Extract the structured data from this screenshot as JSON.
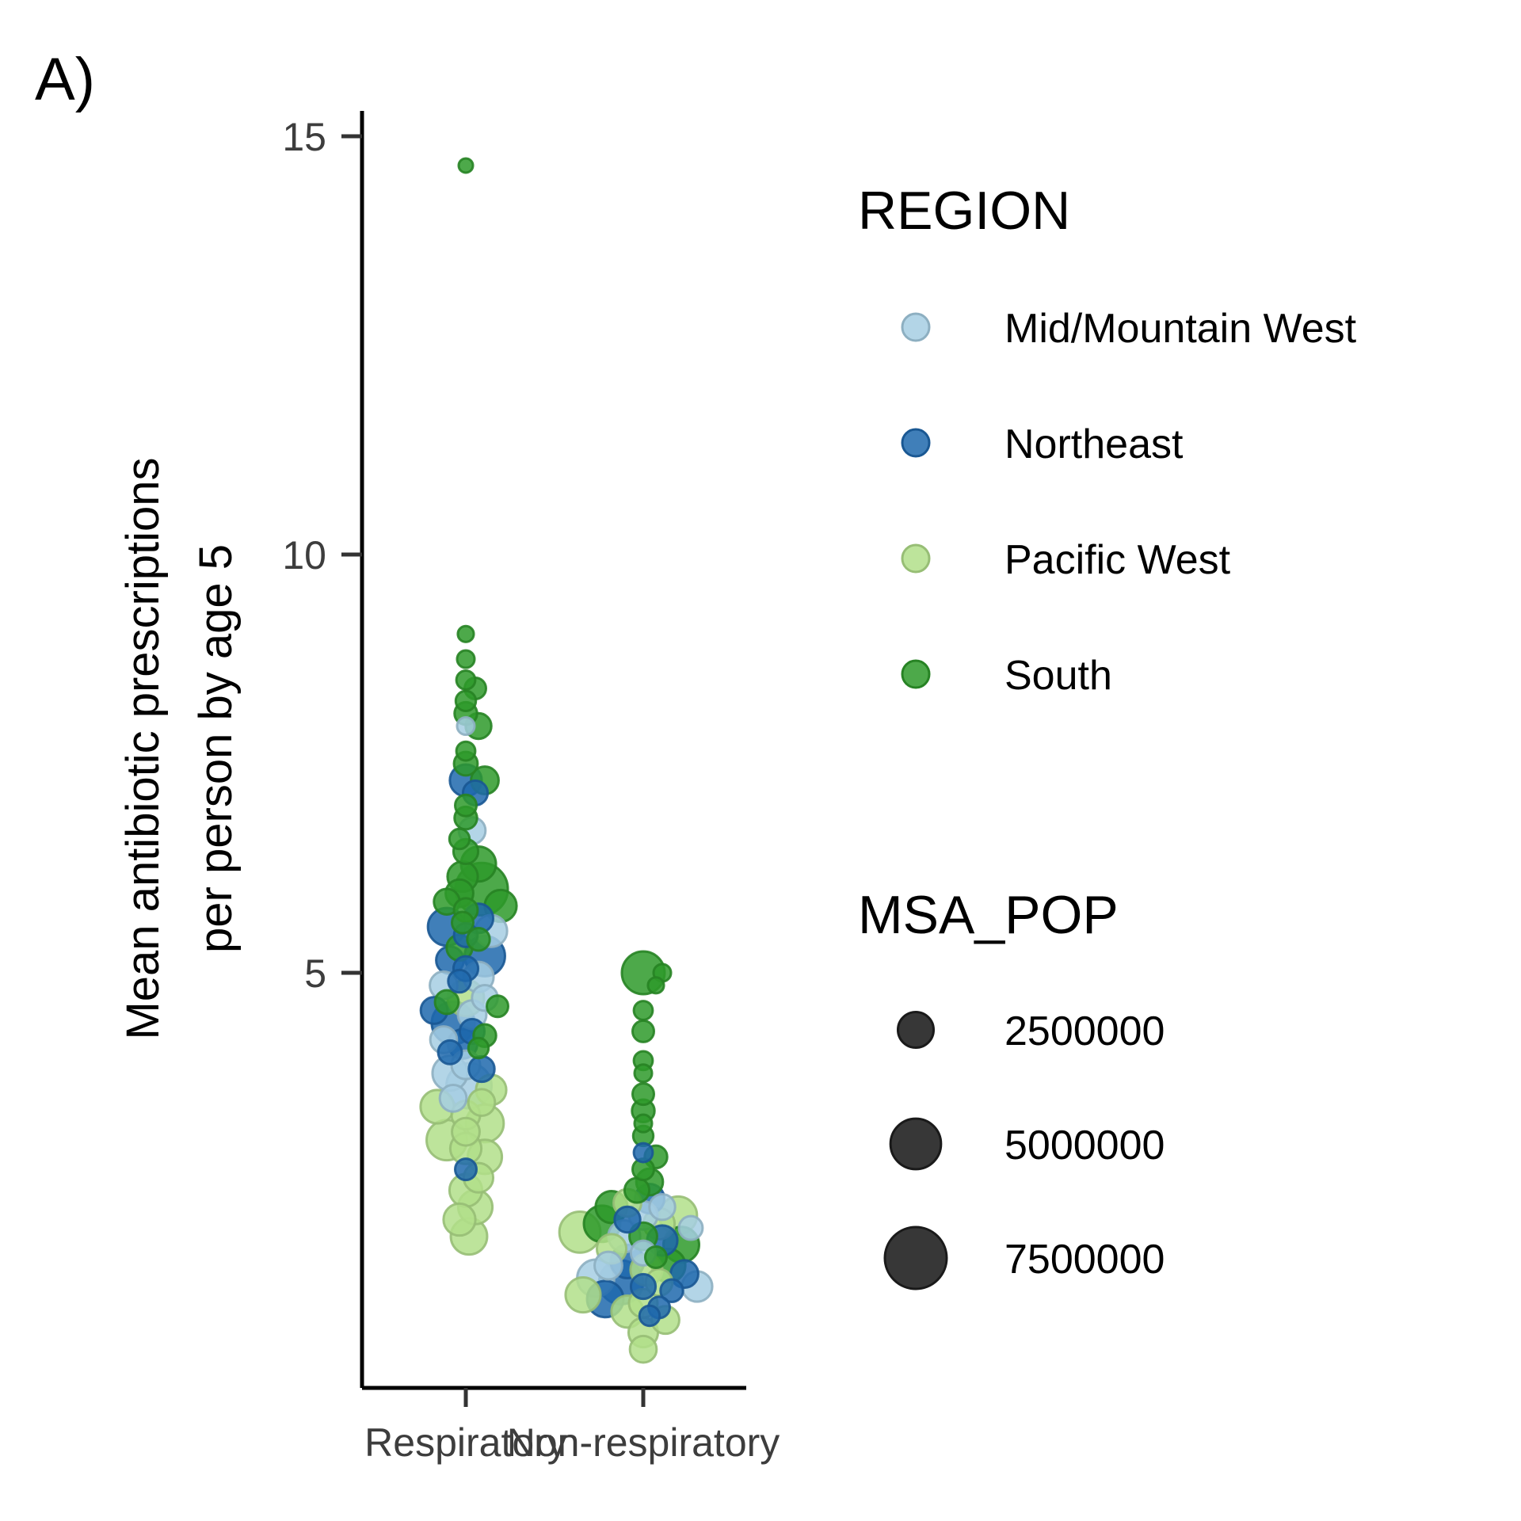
{
  "panel_label": "A)",
  "chart_data": {
    "type": "scatter",
    "subtype": "beeswarm",
    "title": "",
    "xlabel": "",
    "ylabel_lines": [
      "Mean antibiotic prescriptions",
      "per person by age 5"
    ],
    "categories": [
      "Respiratory",
      "Non-respiratory"
    ],
    "ylim": [
      0.5,
      15.3
    ],
    "y_ticks": [
      5,
      10,
      15
    ],
    "y_tick_labels": [
      "5",
      "10",
      "15"
    ],
    "grid": false,
    "legend_placement": "right",
    "color_legend": {
      "title": "REGION",
      "entries": [
        {
          "label": "Mid/Mountain West",
          "color": "#a6cee3"
        },
        {
          "label": "Northeast",
          "color": "#1f68ad"
        },
        {
          "label": "Pacific West",
          "color": "#b2df8a"
        },
        {
          "label": "South",
          "color": "#2e9a2a"
        }
      ]
    },
    "size_legend": {
      "title": "MSA_POP",
      "entries": [
        {
          "label": "2500000",
          "value": 2500000
        },
        {
          "label": "5000000",
          "value": 5000000
        },
        {
          "label": "7500000",
          "value": 7500000
        }
      ]
    },
    "points": [
      {
        "c": "Respiratory",
        "r": "South",
        "y": 14.65,
        "pop": 400000
      },
      {
        "c": "Respiratory",
        "r": "South",
        "y": 9.05,
        "pop": 500000
      },
      {
        "c": "Respiratory",
        "r": "South",
        "y": 8.75,
        "pop": 600000
      },
      {
        "c": "Respiratory",
        "r": "South",
        "y": 8.5,
        "pop": 700000
      },
      {
        "c": "Respiratory",
        "r": "South",
        "y": 8.4,
        "pop": 900000
      },
      {
        "c": "Respiratory",
        "r": "South",
        "y": 8.25,
        "pop": 800000
      },
      {
        "c": "Respiratory",
        "r": "South",
        "y": 8.1,
        "pop": 1000000
      },
      {
        "c": "Respiratory",
        "r": "Mid/Mountain West",
        "y": 7.95,
        "pop": 600000
      },
      {
        "c": "Respiratory",
        "r": "South",
        "y": 7.95,
        "pop": 1300000
      },
      {
        "c": "Respiratory",
        "r": "South",
        "y": 7.65,
        "pop": 700000
      },
      {
        "c": "Respiratory",
        "r": "South",
        "y": 7.5,
        "pop": 1100000
      },
      {
        "c": "Respiratory",
        "r": "Northeast",
        "y": 7.3,
        "pop": 2000000
      },
      {
        "c": "Respiratory",
        "r": "South",
        "y": 7.3,
        "pop": 1500000
      },
      {
        "c": "Respiratory",
        "r": "Northeast",
        "y": 7.15,
        "pop": 1200000
      },
      {
        "c": "Respiratory",
        "r": "South",
        "y": 7.0,
        "pop": 900000
      },
      {
        "c": "Respiratory",
        "r": "South",
        "y": 6.85,
        "pop": 1000000
      },
      {
        "c": "Respiratory",
        "r": "Mid/Mountain West",
        "y": 6.7,
        "pop": 1400000
      },
      {
        "c": "Respiratory",
        "r": "South",
        "y": 6.6,
        "pop": 800000
      },
      {
        "c": "Respiratory",
        "r": "South",
        "y": 6.45,
        "pop": 1200000
      },
      {
        "c": "Respiratory",
        "r": "South",
        "y": 6.3,
        "pop": 2400000
      },
      {
        "c": "Respiratory",
        "r": "South",
        "y": 6.15,
        "pop": 1800000
      },
      {
        "c": "Respiratory",
        "r": "South",
        "y": 6.0,
        "pop": 5400000
      },
      {
        "c": "Respiratory",
        "r": "South",
        "y": 5.95,
        "pop": 1500000
      },
      {
        "c": "Respiratory",
        "r": "South",
        "y": 5.85,
        "pop": 1300000
      },
      {
        "c": "Respiratory",
        "r": "South",
        "y": 5.8,
        "pop": 2000000
      },
      {
        "c": "Respiratory",
        "r": "South",
        "y": 5.75,
        "pop": 1100000
      },
      {
        "c": "Respiratory",
        "r": "Northeast",
        "y": 5.65,
        "pop": 1700000
      },
      {
        "c": "Respiratory",
        "r": "South",
        "y": 5.6,
        "pop": 900000
      },
      {
        "c": "Respiratory",
        "r": "Northeast",
        "y": 5.55,
        "pop": 2800000
      },
      {
        "c": "Respiratory",
        "r": "Mid/Mountain West",
        "y": 5.5,
        "pop": 2000000
      },
      {
        "c": "Respiratory",
        "r": "Northeast",
        "y": 5.45,
        "pop": 1100000
      },
      {
        "c": "Respiratory",
        "r": "South",
        "y": 5.4,
        "pop": 1000000
      },
      {
        "c": "Respiratory",
        "r": "South",
        "y": 5.3,
        "pop": 1300000
      },
      {
        "c": "Respiratory",
        "r": "Northeast",
        "y": 5.2,
        "pop": 3200000
      },
      {
        "c": "Respiratory",
        "r": "Northeast",
        "y": 5.15,
        "pop": 1500000
      },
      {
        "c": "Respiratory",
        "r": "Northeast",
        "y": 5.05,
        "pop": 1200000
      },
      {
        "c": "Respiratory",
        "r": "Mid/Mountain West",
        "y": 4.95,
        "pop": 1800000
      },
      {
        "c": "Respiratory",
        "r": "Northeast",
        "y": 4.9,
        "pop": 1000000
      },
      {
        "c": "Respiratory",
        "r": "Mid/Mountain West",
        "y": 4.85,
        "pop": 1500000
      },
      {
        "c": "Respiratory",
        "r": "Pacific West",
        "y": 4.7,
        "pop": 2600000
      },
      {
        "c": "Respiratory",
        "r": "Mid/Mountain West",
        "y": 4.7,
        "pop": 1300000
      },
      {
        "c": "Respiratory",
        "r": "South",
        "y": 4.65,
        "pop": 1100000
      },
      {
        "c": "Respiratory",
        "r": "South",
        "y": 4.6,
        "pop": 900000
      },
      {
        "c": "Respiratory",
        "r": "Northeast",
        "y": 4.55,
        "pop": 1400000
      },
      {
        "c": "Respiratory",
        "r": "Mid/Mountain West",
        "y": 4.5,
        "pop": 1600000
      },
      {
        "c": "Respiratory",
        "r": "Northeast",
        "y": 4.4,
        "pop": 3600000
      },
      {
        "c": "Respiratory",
        "r": "Northeast",
        "y": 4.3,
        "pop": 1200000
      },
      {
        "c": "Respiratory",
        "r": "South",
        "y": 4.25,
        "pop": 1000000
      },
      {
        "c": "Respiratory",
        "r": "Mid/Mountain West",
        "y": 4.2,
        "pop": 1400000
      },
      {
        "c": "Respiratory",
        "r": "Northeast",
        "y": 4.15,
        "pop": 1700000
      },
      {
        "c": "Respiratory",
        "r": "South",
        "y": 4.1,
        "pop": 800000
      },
      {
        "c": "Respiratory",
        "r": "Northeast",
        "y": 4.05,
        "pop": 1100000
      },
      {
        "c": "Respiratory",
        "r": "Mid/Mountain West",
        "y": 3.9,
        "pop": 1600000
      },
      {
        "c": "Respiratory",
        "r": "Northeast",
        "y": 3.85,
        "pop": 1300000
      },
      {
        "c": "Respiratory",
        "r": "Mid/Mountain West",
        "y": 3.8,
        "pop": 2400000
      },
      {
        "c": "Respiratory",
        "r": "Mid/Mountain West",
        "y": 3.65,
        "pop": 4000000
      },
      {
        "c": "Respiratory",
        "r": "Pacific West",
        "y": 3.6,
        "pop": 1800000
      },
      {
        "c": "Respiratory",
        "r": "Mid/Mountain West",
        "y": 3.5,
        "pop": 1400000
      },
      {
        "c": "Respiratory",
        "r": "Pacific West",
        "y": 3.45,
        "pop": 1400000
      },
      {
        "c": "Respiratory",
        "r": "Pacific West",
        "y": 3.4,
        "pop": 2200000
      },
      {
        "c": "Respiratory",
        "r": "Pacific West",
        "y": 3.3,
        "pop": 1600000
      },
      {
        "c": "Respiratory",
        "r": "Pacific West",
        "y": 3.2,
        "pop": 2800000
      },
      {
        "c": "Respiratory",
        "r": "Pacific West",
        "y": 3.1,
        "pop": 1500000
      },
      {
        "c": "Respiratory",
        "r": "Pacific West",
        "y": 3.0,
        "pop": 3200000
      },
      {
        "c": "Respiratory",
        "r": "Pacific West",
        "y": 2.9,
        "pop": 1900000
      },
      {
        "c": "Respiratory",
        "r": "Pacific West",
        "y": 2.8,
        "pop": 2300000
      },
      {
        "c": "Respiratory",
        "r": "Northeast",
        "y": 2.65,
        "pop": 900000
      },
      {
        "c": "Respiratory",
        "r": "Pacific West",
        "y": 2.55,
        "pop": 1700000
      },
      {
        "c": "Respiratory",
        "r": "Pacific West",
        "y": 2.4,
        "pop": 2100000
      },
      {
        "c": "Respiratory",
        "r": "Pacific West",
        "y": 2.2,
        "pop": 2300000
      },
      {
        "c": "Respiratory",
        "r": "Pacific West",
        "y": 2.05,
        "pop": 2000000
      },
      {
        "c": "Respiratory",
        "r": "Pacific West",
        "y": 1.85,
        "pop": 2600000
      },
      {
        "c": "Non-respiratory",
        "r": "South",
        "y": 5.0,
        "pop": 3600000
      },
      {
        "c": "Non-respiratory",
        "r": "South",
        "y": 5.0,
        "pop": 600000
      },
      {
        "c": "Non-respiratory",
        "r": "South",
        "y": 4.85,
        "pop": 500000
      },
      {
        "c": "Non-respiratory",
        "r": "South",
        "y": 4.55,
        "pop": 700000
      },
      {
        "c": "Non-respiratory",
        "r": "South",
        "y": 4.3,
        "pop": 900000
      },
      {
        "c": "Non-respiratory",
        "r": "South",
        "y": 3.95,
        "pop": 700000
      },
      {
        "c": "Non-respiratory",
        "r": "South",
        "y": 3.8,
        "pop": 600000
      },
      {
        "c": "Non-respiratory",
        "r": "South",
        "y": 3.55,
        "pop": 900000
      },
      {
        "c": "Non-respiratory",
        "r": "South",
        "y": 3.35,
        "pop": 1000000
      },
      {
        "c": "Non-respiratory",
        "r": "South",
        "y": 3.2,
        "pop": 600000
      },
      {
        "c": "Non-respiratory",
        "r": "South",
        "y": 3.05,
        "pop": 800000
      },
      {
        "c": "Non-respiratory",
        "r": "Northeast",
        "y": 2.85,
        "pop": 700000
      },
      {
        "c": "Non-respiratory",
        "r": "South",
        "y": 2.8,
        "pop": 1000000
      },
      {
        "c": "Non-respiratory",
        "r": "South",
        "y": 2.65,
        "pop": 900000
      },
      {
        "c": "Non-respiratory",
        "r": "South",
        "y": 2.5,
        "pop": 1400000
      },
      {
        "c": "Non-respiratory",
        "r": "South",
        "y": 2.4,
        "pop": 1200000
      },
      {
        "c": "Non-respiratory",
        "r": "Northeast",
        "y": 2.3,
        "pop": 1700000
      },
      {
        "c": "Non-respiratory",
        "r": "Pacific West",
        "y": 2.25,
        "pop": 1500000
      },
      {
        "c": "Non-respiratory",
        "r": "Mid/Mountain West",
        "y": 2.2,
        "pop": 1300000
      },
      {
        "c": "Non-respiratory",
        "r": "South",
        "y": 2.2,
        "pop": 2000000
      },
      {
        "c": "Non-respiratory",
        "r": "Pacific West",
        "y": 2.1,
        "pop": 2800000
      },
      {
        "c": "Non-respiratory",
        "r": "Mid/Mountain West",
        "y": 2.1,
        "pop": 1600000
      },
      {
        "c": "Non-respiratory",
        "r": "Northeast",
        "y": 2.05,
        "pop": 1300000
      },
      {
        "c": "Non-respiratory",
        "r": "South",
        "y": 2.0,
        "pop": 2600000
      },
      {
        "c": "Non-respiratory",
        "r": "Pacific West",
        "y": 2.0,
        "pop": 1900000
      },
      {
        "c": "Non-respiratory",
        "r": "Mid/Mountain West",
        "y": 1.95,
        "pop": 1100000
      },
      {
        "c": "Non-respiratory",
        "r": "Pacific West",
        "y": 1.9,
        "pop": 3300000
      },
      {
        "c": "Non-respiratory",
        "r": "South",
        "y": 1.85,
        "pop": 1500000
      },
      {
        "c": "Non-respiratory",
        "r": "Mid/Mountain West",
        "y": 1.85,
        "pop": 2000000
      },
      {
        "c": "Non-respiratory",
        "r": "Northeast",
        "y": 1.8,
        "pop": 1800000
      },
      {
        "c": "Non-respiratory",
        "r": "South",
        "y": 1.75,
        "pop": 2500000
      },
      {
        "c": "Non-respiratory",
        "r": "Pacific West",
        "y": 1.7,
        "pop": 1700000
      },
      {
        "c": "Non-respiratory",
        "r": "Mid/Mountain West",
        "y": 1.65,
        "pop": 1200000
      },
      {
        "c": "Non-respiratory",
        "r": "South",
        "y": 1.6,
        "pop": 900000
      },
      {
        "c": "Non-respiratory",
        "r": "Northeast",
        "y": 1.55,
        "pop": 2200000
      },
      {
        "c": "Non-respiratory",
        "r": "South",
        "y": 1.5,
        "pop": 2200000
      },
      {
        "c": "Non-respiratory",
        "r": "Mid/Mountain West",
        "y": 1.5,
        "pop": 1500000
      },
      {
        "c": "Non-respiratory",
        "r": "Pacific West",
        "y": 1.45,
        "pop": 2000000
      },
      {
        "c": "Non-respiratory",
        "r": "Northeast",
        "y": 1.4,
        "pop": 1500000
      },
      {
        "c": "Non-respiratory",
        "r": "Mid/Mountain West",
        "y": 1.35,
        "pop": 2700000
      },
      {
        "c": "Non-respiratory",
        "r": "Northeast",
        "y": 1.3,
        "pop": 3800000
      },
      {
        "c": "Non-respiratory",
        "r": "Pacific West",
        "y": 1.3,
        "pop": 1400000
      },
      {
        "c": "Non-respiratory",
        "r": "Northeast",
        "y": 1.25,
        "pop": 1200000
      },
      {
        "c": "Non-respiratory",
        "r": "Mid/Mountain West",
        "y": 1.25,
        "pop": 1800000
      },
      {
        "c": "Non-respiratory",
        "r": "Northeast",
        "y": 1.2,
        "pop": 1000000
      },
      {
        "c": "Non-respiratory",
        "r": "Pacific West",
        "y": 1.15,
        "pop": 2400000
      },
      {
        "c": "Non-respiratory",
        "r": "Northeast",
        "y": 1.1,
        "pop": 2600000
      },
      {
        "c": "Non-respiratory",
        "r": "Pacific West",
        "y": 1.05,
        "pop": 1600000
      },
      {
        "c": "Non-respiratory",
        "r": "Northeast",
        "y": 1.0,
        "pop": 900000
      },
      {
        "c": "Non-respiratory",
        "r": "Pacific West",
        "y": 0.95,
        "pop": 2000000
      },
      {
        "c": "Non-respiratory",
        "r": "Northeast",
        "y": 0.9,
        "pop": 800000
      },
      {
        "c": "Non-respiratory",
        "r": "Pacific West",
        "y": 0.85,
        "pop": 1500000
      },
      {
        "c": "Non-respiratory",
        "r": "Pacific West",
        "y": 0.7,
        "pop": 1700000
      },
      {
        "c": "Non-respiratory",
        "r": "Pacific West",
        "y": 0.5,
        "pop": 1400000
      }
    ]
  }
}
